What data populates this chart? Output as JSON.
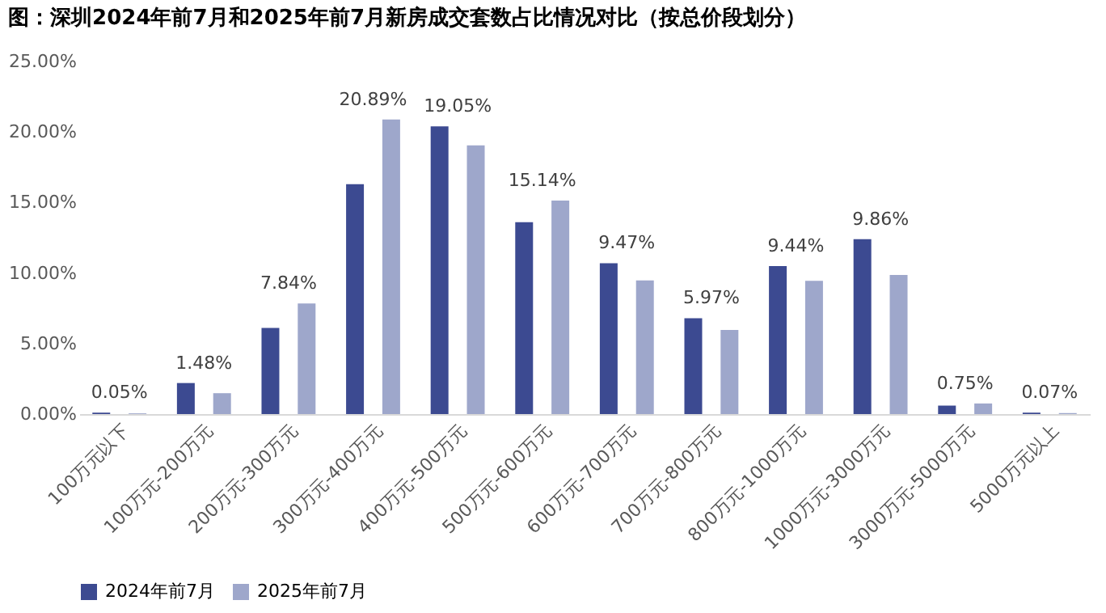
{
  "chart_data": {
    "type": "bar",
    "title": "图：深圳2024年前7月和2025年前7月新房成交套数占比情况对比（按总价段划分）",
    "categories": [
      "100万元以下",
      "100万元-200万元",
      "200万元-300万元",
      "300万元-400万元",
      "400万元-500万元",
      "500万元-600万元",
      "600万元-700万元",
      "700万元-800万元",
      "800万元-1000万元",
      "1000万元-3000万元",
      "3000万元-5000万元",
      "5000万元以上"
    ],
    "series": [
      {
        "name": "2024年前7月",
        "color": "#3c4a91",
        "values": [
          0.1,
          2.2,
          6.1,
          16.3,
          20.4,
          13.6,
          10.7,
          6.8,
          10.5,
          12.4,
          0.6,
          0.1
        ]
      },
      {
        "name": "2025年前7月",
        "color": "#9ea7cb",
        "values": [
          0.05,
          1.48,
          7.84,
          20.89,
          19.05,
          15.14,
          9.47,
          5.97,
          9.44,
          9.86,
          0.75,
          0.07
        ],
        "value_labels": [
          "0.05%",
          "1.48%",
          "7.84%",
          "20.89%",
          "19.05%",
          "15.14%",
          "9.47%",
          "5.97%",
          "9.44%",
          "9.86%",
          "0.75%",
          "0.07%"
        ]
      }
    ],
    "ylim": [
      0,
      25
    ],
    "yticks": [
      {
        "value": 0,
        "label": "0.00%"
      },
      {
        "value": 5,
        "label": "5.00%"
      },
      {
        "value": 10,
        "label": "10.00%"
      },
      {
        "value": 15,
        "label": "15.00%"
      },
      {
        "value": 20,
        "label": "20.00%"
      },
      {
        "value": 25,
        "label": "25.00%"
      }
    ],
    "grid": false,
    "legend": "bottom"
  }
}
